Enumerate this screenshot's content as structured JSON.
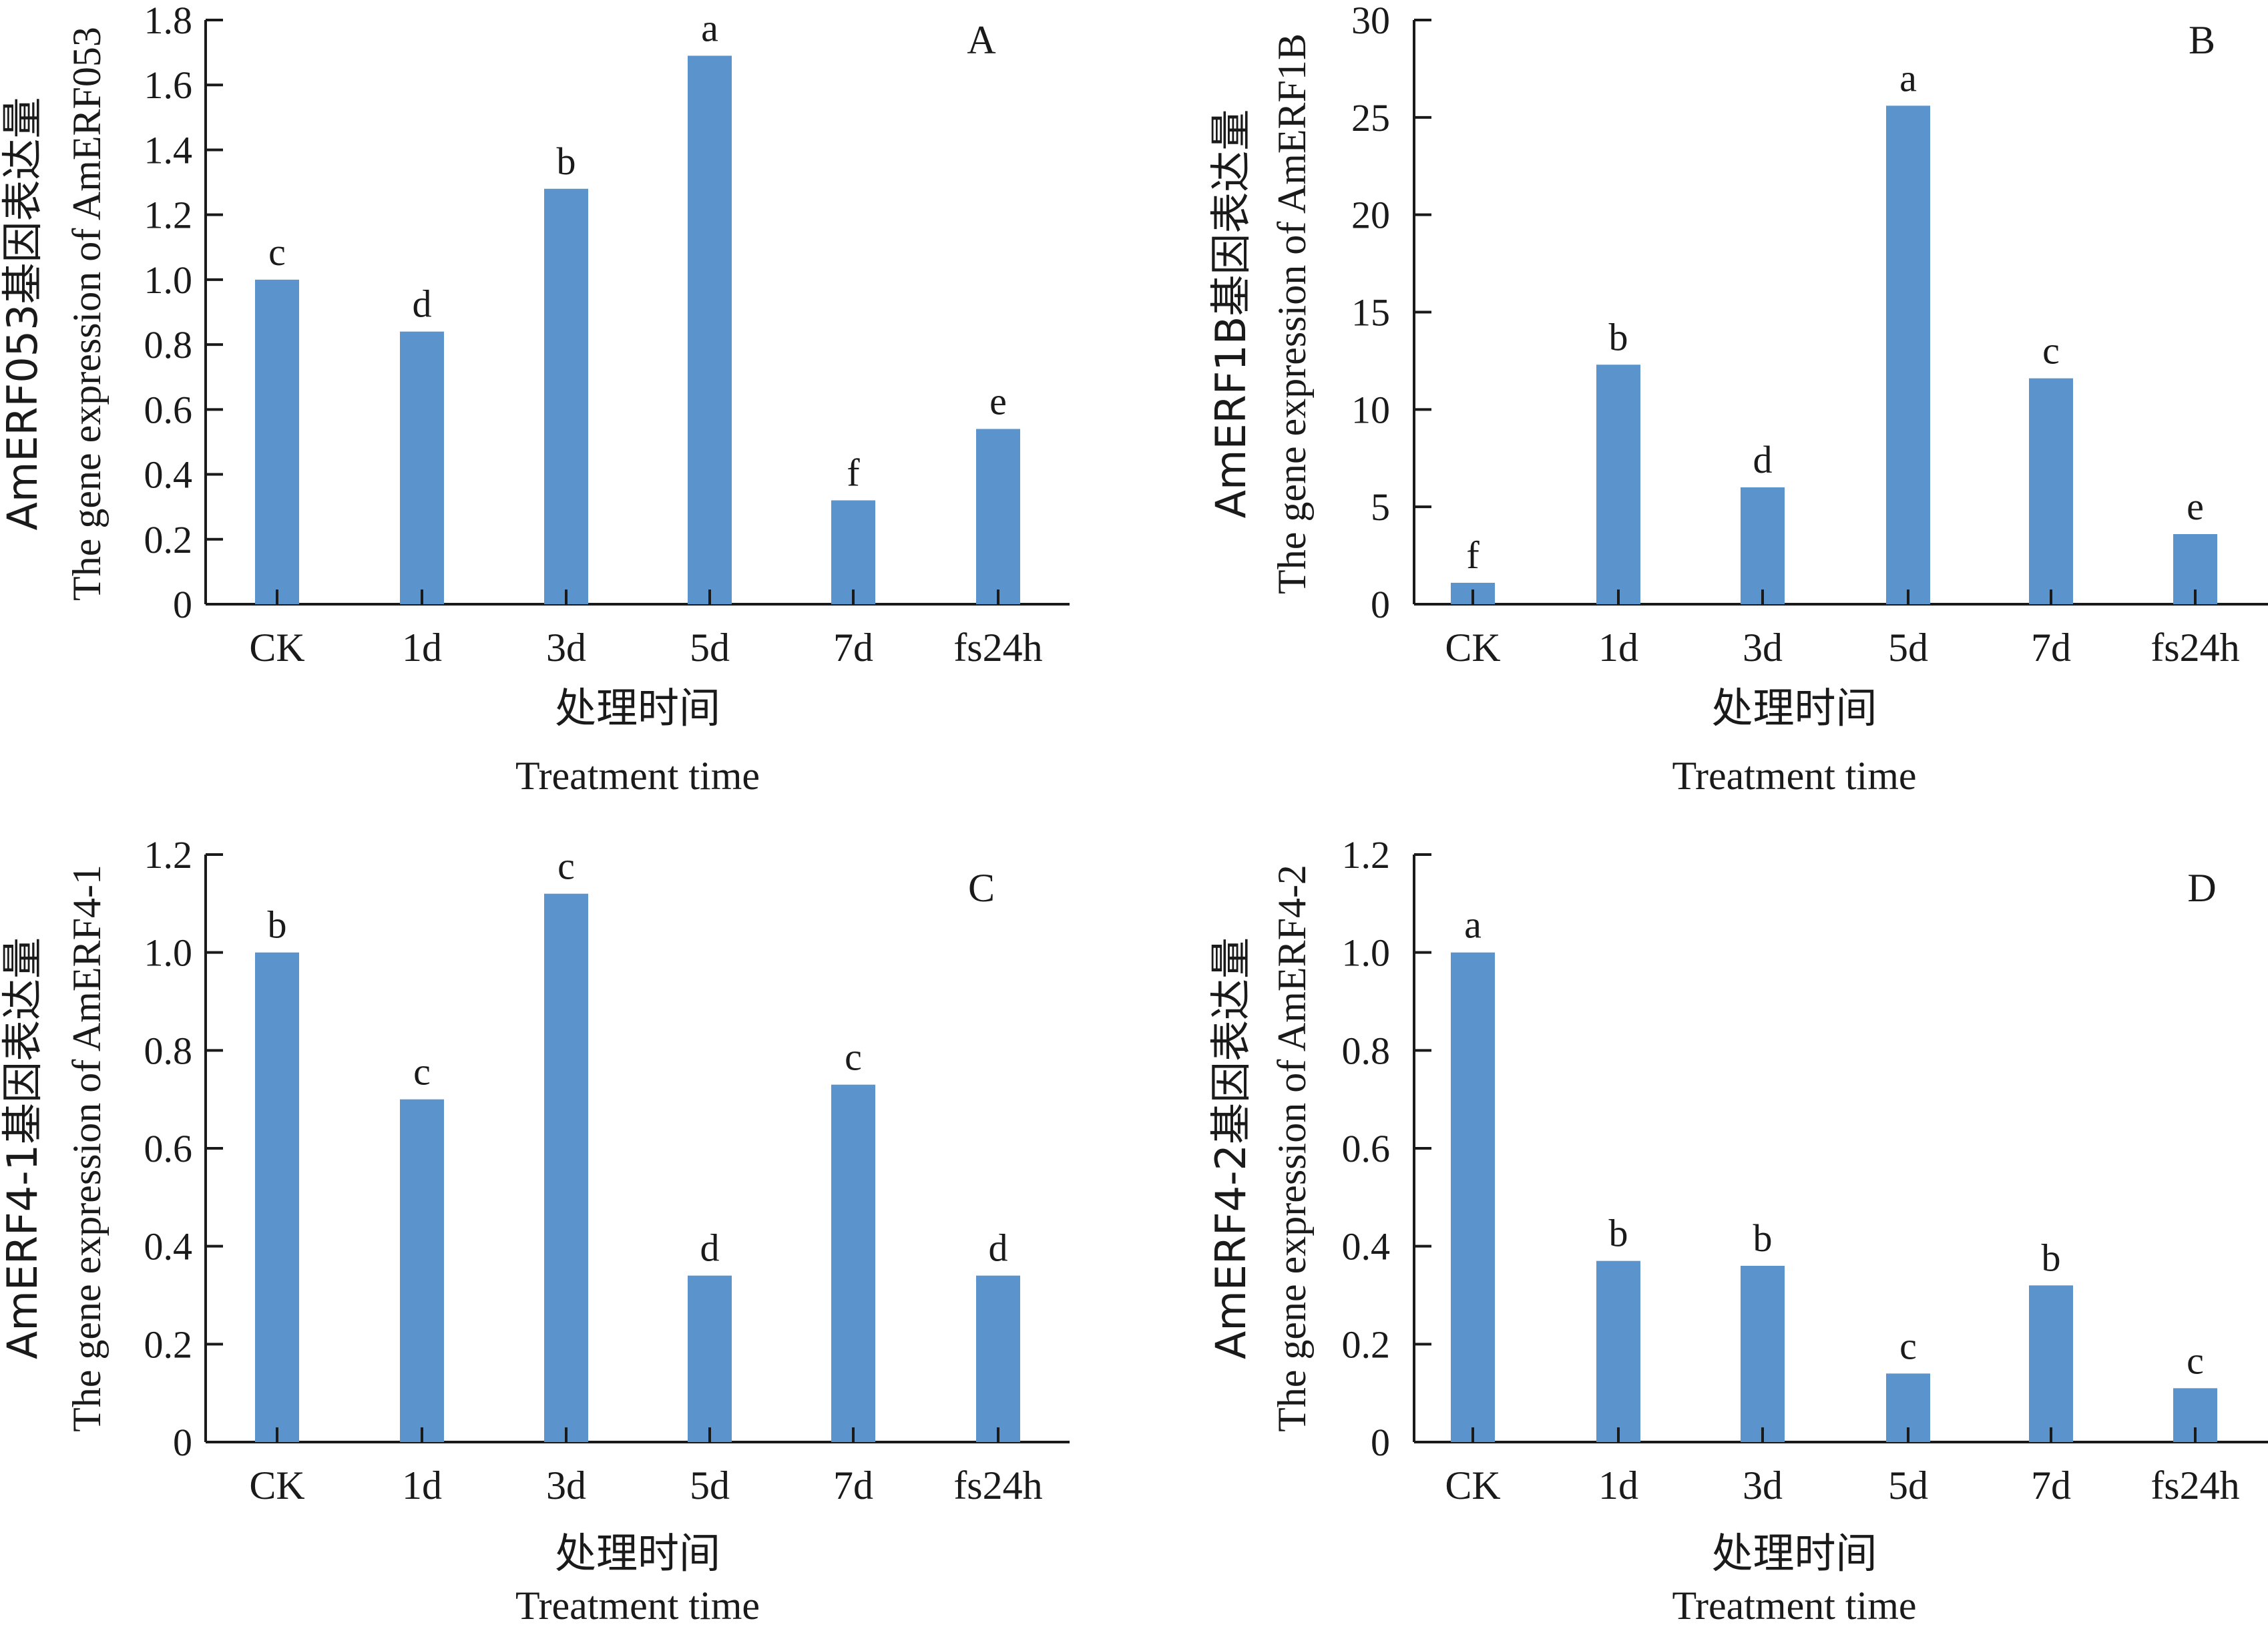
{
  "figure": {
    "bar_color": "#5b94cd",
    "axis_color": "#1a1a1a"
  },
  "chart_data": [
    {
      "type": "bar",
      "panel": "A",
      "categories": [
        "CK",
        "1d",
        "3d",
        "5d",
        "7d",
        "fs24h"
      ],
      "values": [
        1.0,
        0.84,
        1.28,
        1.69,
        0.32,
        0.54
      ],
      "significance": [
        "c",
        "d",
        "b",
        "a",
        "f",
        "e"
      ],
      "ylim": [
        0,
        1.8
      ],
      "yticks": [
        "0",
        "0.2",
        "0.4",
        "0.6",
        "0.8",
        "1.0",
        "1.2",
        "1.4",
        "1.6",
        "1.8"
      ],
      "ylabel_cn": "AmERF053基因表达量",
      "ylabel_en": "The gene expression of AmERF053",
      "xlabel_cn": "处理时间",
      "xlabel_en": "Treatment time"
    },
    {
      "type": "bar",
      "panel": "B",
      "categories": [
        "CK",
        "1d",
        "3d",
        "5d",
        "7d",
        "fs24h"
      ],
      "values": [
        1.1,
        12.3,
        6.0,
        25.6,
        11.6,
        3.6
      ],
      "significance": [
        "f",
        "b",
        "d",
        "a",
        "c",
        "e"
      ],
      "ylim": [
        0,
        30
      ],
      "yticks": [
        "0",
        "5",
        "10",
        "15",
        "20",
        "25",
        "30"
      ],
      "ylabel_cn": "AmERF1B基因表达量",
      "ylabel_en": "The gene expression of AmERF1B",
      "xlabel_cn": "处理时间",
      "xlabel_en": "Treatment time"
    },
    {
      "type": "bar",
      "panel": "C",
      "categories": [
        "CK",
        "1d",
        "3d",
        "5d",
        "7d",
        "fs24h"
      ],
      "values": [
        1.0,
        0.7,
        1.12,
        0.34,
        0.73,
        0.34
      ],
      "significance": [
        "b",
        "c",
        "c",
        "d",
        "c",
        "d"
      ],
      "ylim": [
        0,
        1.2
      ],
      "yticks": [
        "0",
        "0.2",
        "0.4",
        "0.6",
        "0.8",
        "1.0",
        "1.2"
      ],
      "ylabel_cn": "AmERF4-1基因表达量",
      "ylabel_en": "The gene expression of AmERF4-1",
      "xlabel_cn": "处理时间",
      "xlabel_en": "Treatment time"
    },
    {
      "type": "bar",
      "panel": "D",
      "categories": [
        "CK",
        "1d",
        "3d",
        "5d",
        "7d",
        "fs24h"
      ],
      "values": [
        1.0,
        0.37,
        0.36,
        0.14,
        0.32,
        0.11
      ],
      "significance": [
        "a",
        "b",
        "b",
        "c",
        "b",
        "c"
      ],
      "ylim": [
        0,
        1.2
      ],
      "yticks": [
        "0",
        "0.2",
        "0.4",
        "0.6",
        "0.8",
        "1.0",
        "1.2"
      ],
      "ylabel_cn": "AmERF4-2基因表达量",
      "ylabel_en": "The gene expression of AmERF4-2",
      "xlabel_cn": "处理时间",
      "xlabel_en": "Treatment time"
    }
  ]
}
